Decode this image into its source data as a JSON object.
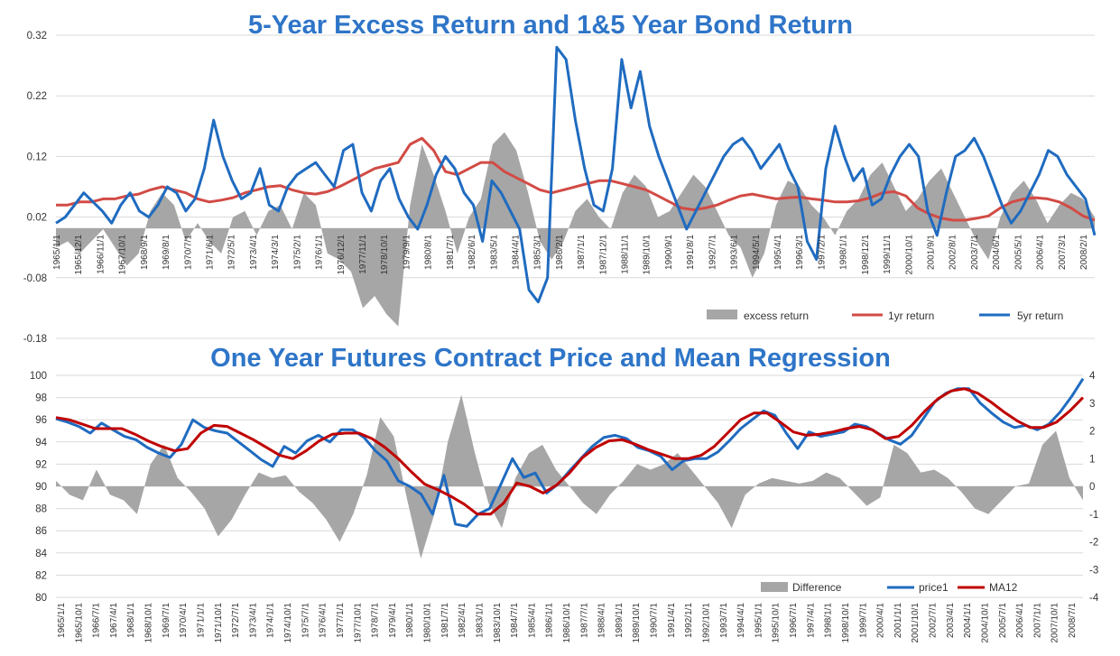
{
  "chart_data": [
    {
      "type": "area+line",
      "title": "5-Year Excess Return and 1&5 Year Bond Return",
      "ylim": [
        -0.18,
        0.32
      ],
      "yticks": [
        "0.32",
        "0.22",
        "0.12",
        "0.02",
        "-0.08",
        "-0.18"
      ],
      "x_range": [
        "1965/1/1",
        "2008/12/1"
      ],
      "xticks": [
        "1965/1/1",
        "1965/12/1",
        "1966/11/1",
        "1967/10/1",
        "1968/9/1",
        "1969/8/1",
        "1970/7/1",
        "1971/6/1",
        "1972/5/1",
        "1973/4/1",
        "1974/3/1",
        "1975/2/1",
        "1976/1/1",
        "1976/12/1",
        "1977/11/1",
        "1978/10/1",
        "1979/9/1",
        "1980/8/1",
        "1981/7/1",
        "1982/6/1",
        "1983/5/1",
        "1984/4/1",
        "1985/3/1",
        "1986/2/1",
        "1987/1/1",
        "1987/12/1",
        "1988/11/1",
        "1989/10/1",
        "1990/9/1",
        "1991/8/1",
        "1992/7/1",
        "1993/6/1",
        "1994/5/1",
        "1995/4/1",
        "1996/3/1",
        "1997/2/1",
        "1998/1/1",
        "1998/12/1",
        "1999/11/1",
        "2000/10/1",
        "2001/9/1",
        "2002/8/1",
        "2003/7/1",
        "2004/6/1",
        "2005/5/1",
        "2006/4/1",
        "2007/3/1",
        "2008/2/1"
      ],
      "series": [
        {
          "name": "excess return",
          "kind": "area",
          "color": "#A6A6A6",
          "year_step": 0.5,
          "values": [
            -0.03,
            -0.02,
            -0.04,
            -0.02,
            0.0,
            -0.03,
            -0.06,
            -0.04,
            0.03,
            0.06,
            0.04,
            -0.02,
            0.01,
            -0.02,
            -0.04,
            0.02,
            0.03,
            -0.01,
            0.03,
            0.04,
            0.0,
            0.06,
            0.04,
            -0.04,
            -0.05,
            -0.07,
            -0.13,
            -0.11,
            -0.14,
            -0.16,
            0.04,
            0.14,
            0.09,
            0.03,
            -0.04,
            0.02,
            0.05,
            0.14,
            0.16,
            0.13,
            0.06,
            -0.02,
            -0.05,
            -0.02,
            0.03,
            0.05,
            0.02,
            0.0,
            0.06,
            0.09,
            0.07,
            0.02,
            0.03,
            0.06,
            0.09,
            0.07,
            0.03,
            -0.01,
            -0.03,
            -0.08,
            -0.04,
            0.04,
            0.08,
            0.07,
            0.04,
            0.02,
            -0.01,
            0.03,
            0.05,
            0.09,
            0.11,
            0.07,
            0.03,
            0.05,
            0.08,
            0.1,
            0.06,
            0.02,
            -0.02,
            -0.05,
            0.02,
            0.06,
            0.08,
            0.05,
            0.01,
            0.04,
            0.06,
            0.05,
            0.02
          ]
        },
        {
          "name": "1yr return",
          "kind": "line",
          "color": "#D24B45",
          "year_step": 0.5,
          "values": [
            0.04,
            0.04,
            0.045,
            0.045,
            0.05,
            0.05,
            0.055,
            0.058,
            0.065,
            0.07,
            0.065,
            0.06,
            0.05,
            0.045,
            0.048,
            0.052,
            0.06,
            0.065,
            0.07,
            0.072,
            0.065,
            0.06,
            0.058,
            0.062,
            0.07,
            0.08,
            0.09,
            0.1,
            0.105,
            0.11,
            0.14,
            0.15,
            0.13,
            0.095,
            0.09,
            0.1,
            0.11,
            0.11,
            0.095,
            0.085,
            0.075,
            0.065,
            0.06,
            0.065,
            0.07,
            0.075,
            0.08,
            0.08,
            0.075,
            0.07,
            0.065,
            0.055,
            0.045,
            0.035,
            0.032,
            0.035,
            0.04,
            0.048,
            0.055,
            0.058,
            0.054,
            0.05,
            0.052,
            0.053,
            0.05,
            0.048,
            0.045,
            0.045,
            0.047,
            0.052,
            0.06,
            0.062,
            0.055,
            0.035,
            0.025,
            0.018,
            0.015,
            0.015,
            0.018,
            0.022,
            0.035,
            0.045,
            0.05,
            0.052,
            0.05,
            0.045,
            0.035,
            0.022,
            0.015
          ]
        },
        {
          "name": "5yr return",
          "kind": "line",
          "color": "#1F6BC0",
          "year_step": 0.5,
          "values": [
            0.01,
            0.02,
            0.04,
            0.06,
            0.045,
            0.03,
            0.01,
            0.04,
            0.06,
            0.03,
            0.02,
            0.04,
            0.07,
            0.06,
            0.03,
            0.05,
            0.1,
            0.18,
            0.12,
            0.08,
            0.05,
            0.06,
            0.1,
            0.04,
            0.03,
            0.07,
            0.09,
            0.1,
            0.11,
            0.09,
            0.07,
            0.13,
            0.14,
            0.06,
            0.03,
            0.08,
            0.1,
            0.05,
            0.02,
            0.0,
            0.04,
            0.09,
            0.12,
            0.1,
            0.06,
            0.04,
            -0.02,
            0.08,
            0.06,
            0.03,
            0.0,
            -0.1,
            -0.12,
            -0.08,
            0.3,
            0.28,
            0.18,
            0.1,
            0.04,
            0.03,
            0.1,
            0.28,
            0.2,
            0.26,
            0.17,
            0.12,
            0.08,
            0.04,
            0.0,
            0.03,
            0.06,
            0.09,
            0.12,
            0.14,
            0.15,
            0.13,
            0.1,
            0.12,
            0.14,
            0.1,
            0.07,
            -0.02,
            -0.05,
            0.1,
            0.17,
            0.12,
            0.08,
            0.1,
            0.04,
            0.05,
            0.09,
            0.12,
            0.14,
            0.12,
            0.03,
            -0.01,
            0.06,
            0.12,
            0.13,
            0.15,
            0.12,
            0.08,
            0.04,
            0.01,
            0.03,
            0.06,
            0.09,
            0.13,
            0.12,
            0.09,
            0.07,
            0.05,
            -0.01
          ]
        }
      ],
      "legend": {
        "placement": "bottom-right",
        "items": [
          "excess return",
          "1yr return",
          "5yr return"
        ]
      }
    },
    {
      "type": "area+line",
      "title": "One Year Futures Contract Price and Mean Regression",
      "ylim_left": [
        80,
        100
      ],
      "ylim_right": [
        -4,
        4
      ],
      "yticks_left": [
        "100",
        "98",
        "96",
        "94",
        "92",
        "90",
        "88",
        "86",
        "84",
        "82",
        "80"
      ],
      "yticks_right": [
        "4",
        "3",
        "2",
        "1",
        "0",
        "-1",
        "-2",
        "-3",
        "-4"
      ],
      "x_range": [
        "1965/1/1",
        "2008/12/1"
      ],
      "xticks": [
        "1965/1/1",
        "1965/10/1",
        "1966/7/1",
        "1967/4/1",
        "1968/1/1",
        "1968/10/1",
        "1969/7/1",
        "1970/4/1",
        "1971/1/1",
        "1971/10/1",
        "1972/7/1",
        "1973/4/1",
        "1974/1/1",
        "1974/10/1",
        "1975/7/1",
        "1976/4/1",
        "1977/1/1",
        "1977/10/1",
        "1978/7/1",
        "1979/4/1",
        "1980/1/1",
        "1980/10/1",
        "1981/7/1",
        "1982/4/1",
        "1983/1/1",
        "1983/10/1",
        "1984/7/1",
        "1985/4/1",
        "1986/1/1",
        "1986/10/1",
        "1987/7/1",
        "1988/4/1",
        "1989/1/1",
        "1989/10/1",
        "1990/7/1",
        "1991/4/1",
        "1992/1/1",
        "1992/10/1",
        "1993/7/1",
        "1994/4/1",
        "1995/1/1",
        "1995/10/1",
        "1996/7/1",
        "1997/4/1",
        "1998/1/1",
        "1998/10/1",
        "1999/7/1",
        "2000/4/1",
        "2001/1/1",
        "2001/10/1",
        "2002/7/1",
        "2003/4/1",
        "2004/1/1",
        "2004/10/1",
        "2005/7/1",
        "2006/4/1",
        "2007/1/1",
        "2007/10/1",
        "2008/7/1"
      ],
      "series": [
        {
          "name": "Difference",
          "kind": "area",
          "axis": "right",
          "color": "#A6A6A6",
          "year_step": 0.5,
          "values": [
            0.2,
            -0.3,
            -0.5,
            0.6,
            -0.3,
            -0.5,
            -1.0,
            0.8,
            1.5,
            0.3,
            -0.2,
            -0.8,
            -1.8,
            -1.2,
            -0.3,
            0.5,
            0.3,
            0.4,
            -0.2,
            -0.6,
            -1.2,
            -2.0,
            -1.0,
            0.4,
            2.5,
            1.8,
            -0.5,
            -2.6,
            -1.0,
            1.6,
            3.3,
            1.2,
            -0.6,
            -1.5,
            0.3,
            1.2,
            1.5,
            0.6,
            0.0,
            -0.6,
            -1.0,
            -0.3,
            0.2,
            0.8,
            0.6,
            0.8,
            1.2,
            0.6,
            0.0,
            -0.6,
            -1.5,
            -0.3,
            0.1,
            0.3,
            0.2,
            0.1,
            0.2,
            0.5,
            0.3,
            -0.2,
            -0.7,
            -0.4,
            1.5,
            1.2,
            0.5,
            0.6,
            0.3,
            -0.2,
            -0.8,
            -1.0,
            -0.5,
            0.0,
            0.1,
            1.5,
            2.0,
            0.3,
            -0.5
          ]
        },
        {
          "name": "price1",
          "kind": "line",
          "axis": "left",
          "color": "#1F6BC0",
          "year_step": 0.5,
          "values": [
            96.1,
            95.8,
            95.4,
            94.8,
            95.7,
            95.1,
            94.5,
            94.2,
            93.5,
            93.0,
            92.6,
            93.8,
            96.0,
            95.3,
            95.0,
            94.8,
            94.0,
            93.2,
            92.4,
            91.8,
            93.6,
            93.0,
            94.1,
            94.6,
            94.0,
            95.1,
            95.1,
            94.4,
            93.2,
            92.3,
            90.5,
            90.0,
            89.3,
            87.5,
            91.0,
            86.6,
            86.4,
            87.5,
            88.0,
            90.2,
            92.5,
            90.8,
            91.2,
            89.4,
            90.2,
            91.4,
            92.5,
            93.6,
            94.4,
            94.6,
            94.3,
            93.5,
            93.2,
            92.7,
            91.5,
            92.3,
            92.5,
            92.5,
            93.1,
            94.1,
            95.2,
            96.0,
            96.8,
            96.4,
            94.8,
            93.4,
            94.9,
            94.5,
            94.7,
            94.9,
            95.6,
            95.4,
            94.8,
            94.2,
            93.8,
            94.6,
            96.1,
            97.6,
            98.4,
            98.8,
            98.8,
            97.5,
            96.6,
            95.8,
            95.3,
            95.5,
            95.1,
            95.6,
            96.7,
            98.1,
            99.7
          ]
        },
        {
          "name": "MA12",
          "kind": "line",
          "axis": "left",
          "color": "#C00000",
          "year_step": 0.5,
          "values": [
            96.2,
            96.0,
            95.6,
            95.2,
            95.2,
            95.2,
            94.7,
            94.1,
            93.6,
            93.2,
            93.4,
            94.8,
            95.5,
            95.4,
            94.8,
            94.2,
            93.5,
            92.8,
            92.5,
            93.2,
            94.1,
            94.7,
            94.8,
            94.8,
            94.3,
            93.5,
            92.5,
            91.3,
            90.2,
            89.7,
            89.1,
            88.4,
            87.5,
            87.5,
            88.5,
            90.3,
            90.0,
            89.4,
            90.1,
            91.2,
            92.6,
            93.5,
            94.1,
            94.2,
            93.8,
            93.3,
            92.9,
            92.5,
            92.5,
            92.8,
            93.6,
            94.8,
            96.0,
            96.6,
            96.6,
            95.8,
            94.9,
            94.6,
            94.7,
            94.9,
            95.2,
            95.4,
            95.1,
            94.3,
            94.5,
            95.5,
            96.8,
            97.9,
            98.6,
            98.8,
            98.4,
            97.6,
            96.7,
            95.9,
            95.3,
            95.3,
            95.8,
            96.8,
            98.0
          ]
        }
      ],
      "legend": {
        "placement": "bottom-right",
        "items": [
          "Difference",
          "price1",
          "MA12"
        ]
      }
    }
  ]
}
